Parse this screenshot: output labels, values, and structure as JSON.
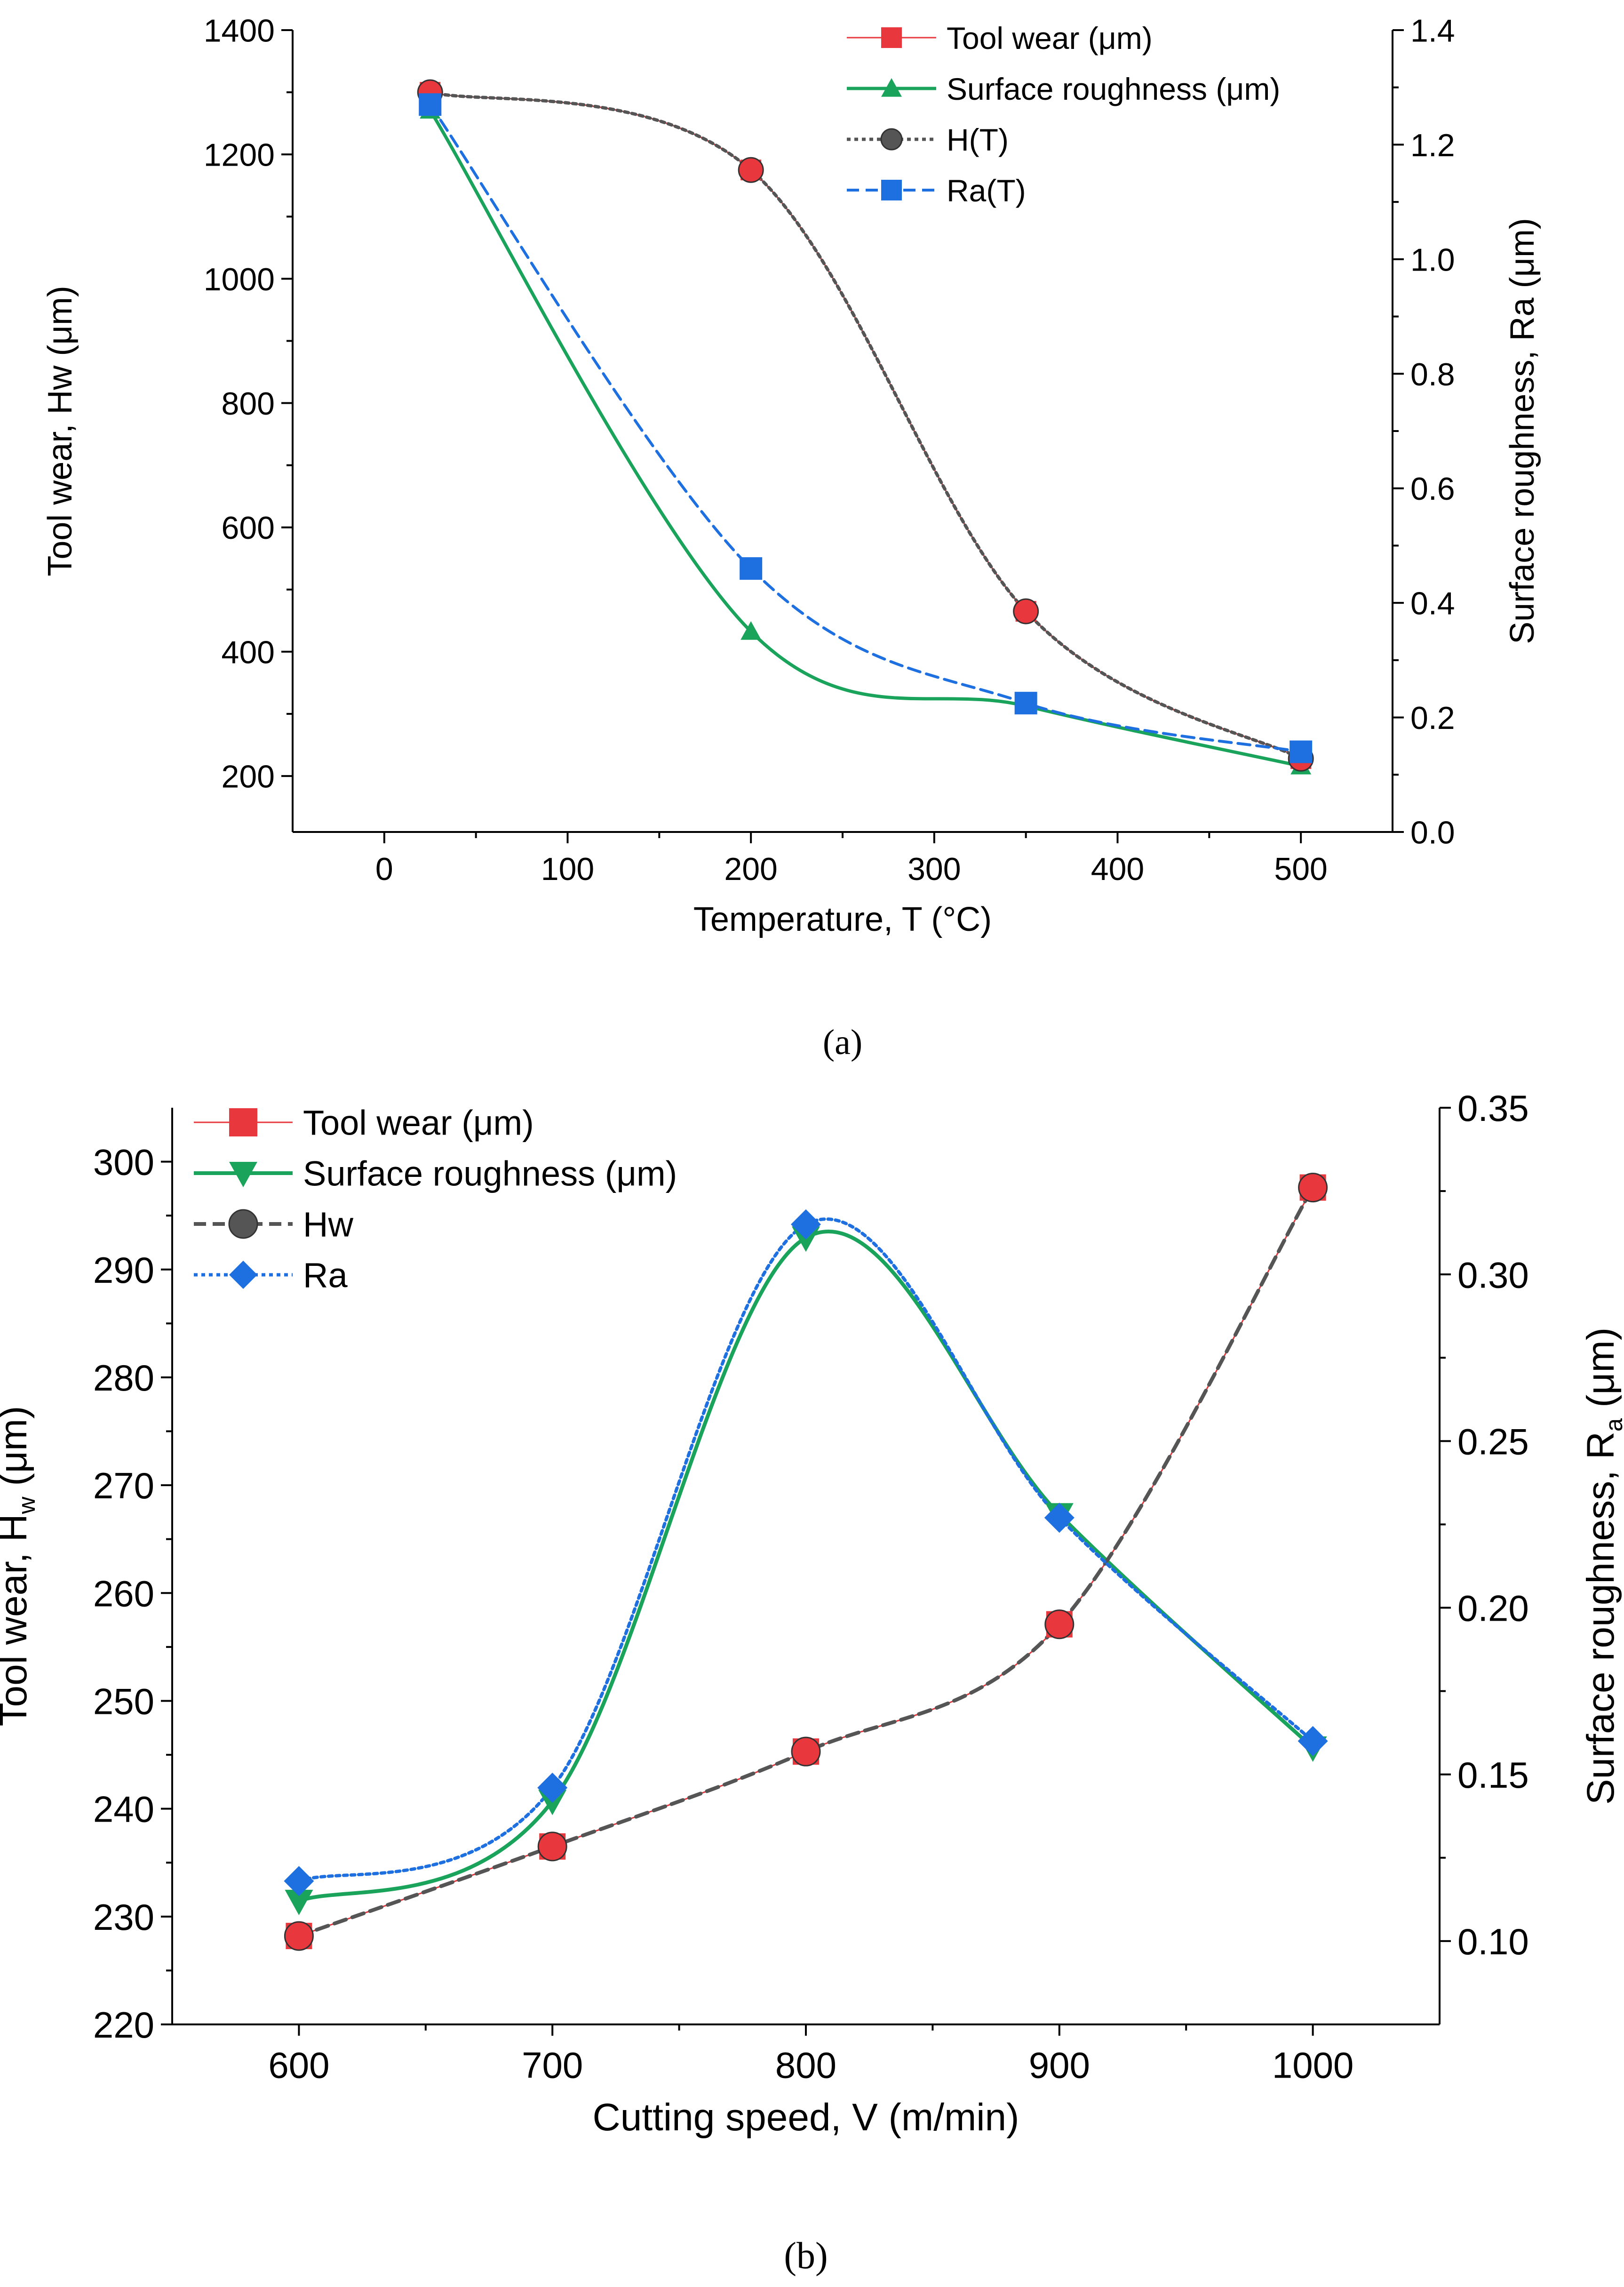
{
  "chart_data": [
    {
      "type": "line",
      "caption": "(a)",
      "xlabel": "Temperature, T (°C)",
      "ylabel_left": "Tool wear, Hw  (μm)",
      "ylabel_right": "Surface roughness, Ra (μm)",
      "xlim": [
        -50,
        550
      ],
      "xticks": [
        0,
        100,
        200,
        300,
        400,
        500
      ],
      "xtick_labels": [
        "0",
        "100",
        "200",
        "300",
        "400",
        "500"
      ],
      "ylim_left": [
        110,
        1400
      ],
      "yticks_left": [
        200,
        400,
        600,
        800,
        1000,
        1200,
        1400
      ],
      "ytick_labels_left": [
        "200",
        "400",
        "600",
        "800",
        "1000",
        "1200",
        "1400"
      ],
      "ylim_right": [
        0.0,
        1.4
      ],
      "yticks_right": [
        0.0,
        0.2,
        0.4,
        0.6,
        0.8,
        1.0,
        1.2,
        1.4
      ],
      "ytick_labels_right": [
        "0.0",
        "0.2",
        "0.4",
        "0.6",
        "0.8",
        "1.0",
        "1.2",
        "1.4"
      ],
      "grid": false,
      "legend_position": "top-right",
      "x": [
        25,
        200,
        350,
        500
      ],
      "series": [
        {
          "name": "Tool wear (μm)",
          "axis": "left",
          "values": [
            1300,
            1175,
            465,
            228
          ],
          "marker": "square",
          "color": "#e8383d",
          "line": "solid",
          "fit": false
        },
        {
          "name": "Surface roughness (μm)",
          "axis": "right",
          "values": [
            1.26,
            0.35,
            0.22,
            0.115
          ],
          "marker": "triangle-up",
          "color": "#1aa35a",
          "line": "solid",
          "fit": false
        },
        {
          "name": "H(T)",
          "axis": "left",
          "values": [
            1300,
            1175,
            465,
            228
          ],
          "marker": "circle",
          "color": "#555555",
          "line": "dotted",
          "fit": true
        },
        {
          "name": "Ra(T)",
          "axis": "right",
          "values": [
            1.27,
            0.46,
            0.225,
            0.14
          ],
          "marker": "square",
          "color": "#1e6fe0",
          "line": "dashed",
          "fit": true
        }
      ]
    },
    {
      "type": "line",
      "caption": "(b)",
      "xlabel": "Cutting speed, V (m/min)",
      "ylabel_left": "Tool wear, H",
      "ylabel_left_sub": "w",
      "ylabel_left_unit": " (μm)",
      "ylabel_right": "Surface roughness, R",
      "ylabel_right_sub": "a",
      "ylabel_right_unit": " (μm)",
      "xlim": [
        550,
        1050
      ],
      "xticks": [
        600,
        700,
        800,
        900,
        1000
      ],
      "xtick_labels": [
        "600",
        "700",
        "800",
        "900",
        "1000"
      ],
      "ylim_left": [
        220,
        305
      ],
      "yticks_left": [
        220,
        230,
        240,
        250,
        260,
        270,
        280,
        290,
        300
      ],
      "ytick_labels_left": [
        "220",
        "230",
        "240",
        "250",
        "260",
        "270",
        "280",
        "290",
        "300"
      ],
      "ylim_right": [
        0.075,
        0.35
      ],
      "yticks_right": [
        0.1,
        0.15,
        0.2,
        0.25,
        0.3,
        0.35
      ],
      "ytick_labels_right": [
        "0.10",
        "0.15",
        "0.20",
        "0.25",
        "0.30",
        "0.35"
      ],
      "grid": false,
      "legend_position": "top-left",
      "x": [
        600,
        700,
        800,
        900,
        1000
      ],
      "series": [
        {
          "name": "Tool wear (μm)",
          "axis": "left",
          "values": [
            228.2,
            236.5,
            245.3,
            257.1,
            297.6
          ],
          "marker": "square",
          "color": "#e8383d",
          "line": "solid",
          "fit": false
        },
        {
          "name": "Surface roughness (μm)",
          "axis": "right",
          "values": [
            0.112,
            0.142,
            0.311,
            0.228,
            0.158
          ],
          "marker": "triangle-down",
          "color": "#1aa35a",
          "line": "solid",
          "fit": false
        },
        {
          "name": "Hw",
          "axis": "left",
          "values": [
            228.2,
            236.5,
            245.3,
            257.1,
            297.6
          ],
          "marker": "circle",
          "color": "#555555",
          "line": "dashed",
          "fit": true
        },
        {
          "name": "Ra",
          "axis": "right",
          "values": [
            0.118,
            0.146,
            0.315,
            0.227,
            0.16
          ],
          "marker": "diamond",
          "color": "#1e6fe0",
          "line": "dotted",
          "fit": true
        }
      ]
    }
  ]
}
